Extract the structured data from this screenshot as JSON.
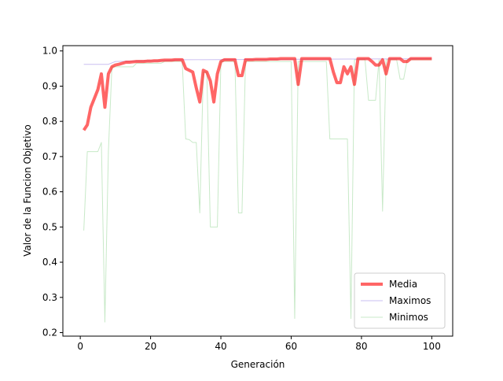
{
  "chart_data": {
    "type": "line",
    "title": "",
    "xlabel": "Generación",
    "ylabel": "Valor de la Funcion Objetivo",
    "xlim": [
      -4.95,
      105.95
    ],
    "ylim": [
      0.19,
      1.015
    ],
    "xticks": [
      0,
      20,
      40,
      60,
      80,
      100
    ],
    "yticks": [
      0.2,
      0.3,
      0.4,
      0.5,
      0.6,
      0.7,
      0.8,
      0.9,
      1.0
    ],
    "xtick_labels": [
      "0",
      "20",
      "40",
      "60",
      "80",
      "100"
    ],
    "ytick_labels": [
      "0.2",
      "0.3",
      "0.4",
      "0.5",
      "0.6",
      "0.7",
      "0.8",
      "0.9",
      "1.0"
    ],
    "grid": false,
    "legend_position": "lower-right",
    "series": [
      {
        "name": "Media",
        "color": "#ff0000",
        "opacity": 0.6,
        "x": [
          1,
          2,
          3,
          4,
          5,
          6,
          7,
          8,
          9,
          10,
          11,
          12,
          13,
          14,
          15,
          16,
          17,
          18,
          19,
          20,
          21,
          22,
          23,
          24,
          25,
          26,
          27,
          28,
          29,
          30,
          31,
          32,
          33,
          34,
          35,
          36,
          37,
          38,
          39,
          40,
          41,
          42,
          43,
          44,
          45,
          46,
          47,
          48,
          49,
          50,
          51,
          52,
          53,
          54,
          55,
          56,
          57,
          58,
          59,
          60,
          61,
          62,
          63,
          64,
          65,
          66,
          67,
          68,
          69,
          70,
          71,
          72,
          73,
          74,
          75,
          76,
          77,
          78,
          79,
          80,
          81,
          82,
          83,
          84,
          85,
          86,
          87,
          88,
          89,
          90,
          91,
          92,
          93,
          94,
          95,
          96,
          97,
          98,
          99,
          100
        ],
        "values": [
          0.775,
          0.79,
          0.84,
          0.865,
          0.89,
          0.935,
          0.84,
          0.935,
          0.955,
          0.96,
          0.962,
          0.965,
          0.968,
          0.968,
          0.969,
          0.97,
          0.97,
          0.97,
          0.971,
          0.971,
          0.972,
          0.972,
          0.973,
          0.974,
          0.974,
          0.974,
          0.975,
          0.975,
          0.975,
          0.95,
          0.945,
          0.94,
          0.895,
          0.855,
          0.945,
          0.94,
          0.915,
          0.855,
          0.935,
          0.97,
          0.975,
          0.975,
          0.975,
          0.975,
          0.93,
          0.93,
          0.975,
          0.975,
          0.975,
          0.976,
          0.976,
          0.976,
          0.976,
          0.977,
          0.977,
          0.977,
          0.978,
          0.978,
          0.978,
          0.978,
          0.978,
          0.905,
          0.978,
          0.978,
          0.978,
          0.978,
          0.978,
          0.978,
          0.978,
          0.978,
          0.978,
          0.94,
          0.91,
          0.91,
          0.955,
          0.935,
          0.955,
          0.905,
          0.978,
          0.978,
          0.978,
          0.978,
          0.97,
          0.96,
          0.96,
          0.975,
          0.935,
          0.978,
          0.978,
          0.978,
          0.978,
          0.97,
          0.97,
          0.978,
          0.978,
          0.978,
          0.978,
          0.978,
          0.978,
          0.978
        ],
        "linewidth": 4
      },
      {
        "name": "Maximos",
        "color": "#8a70e0",
        "opacity": 0.45,
        "x": [
          1,
          8,
          10,
          20,
          21,
          29,
          30,
          100
        ],
        "values": [
          0.962,
          0.962,
          0.97,
          0.972,
          0.972,
          0.975,
          0.975,
          0.978
        ],
        "linewidth": 1
      },
      {
        "name": "Minimos",
        "color": "#60c060",
        "opacity": 0.35,
        "x": [
          1,
          2,
          3,
          4,
          5,
          6,
          7,
          8,
          9,
          10,
          11,
          12,
          13,
          14,
          15,
          16,
          17,
          18,
          19,
          20,
          21,
          22,
          23,
          24,
          25,
          26,
          27,
          28,
          29,
          30,
          31,
          32,
          33,
          34,
          35,
          36,
          37,
          38,
          39,
          40,
          41,
          42,
          43,
          44,
          45,
          46,
          47,
          48,
          49,
          50,
          51,
          52,
          53,
          54,
          55,
          56,
          57,
          58,
          59,
          60,
          61,
          62,
          63,
          64,
          65,
          66,
          67,
          68,
          69,
          70,
          71,
          72,
          73,
          74,
          75,
          76,
          77,
          78,
          79,
          80,
          81,
          82,
          83,
          84,
          85,
          86,
          87,
          88,
          89,
          90,
          91,
          92,
          93,
          94,
          95,
          96,
          97,
          98,
          99,
          100
        ],
        "values": [
          0.49,
          0.714,
          0.714,
          0.714,
          0.714,
          0.74,
          0.23,
          0.714,
          0.955,
          0.955,
          0.955,
          0.955,
          0.955,
          0.955,
          0.955,
          0.965,
          0.965,
          0.965,
          0.965,
          0.965,
          0.965,
          0.965,
          0.965,
          0.97,
          0.97,
          0.97,
          0.97,
          0.97,
          0.97,
          0.75,
          0.748,
          0.74,
          0.74,
          0.54,
          0.94,
          0.94,
          0.5,
          0.5,
          0.5,
          0.97,
          0.97,
          0.97,
          0.97,
          0.97,
          0.54,
          0.54,
          0.97,
          0.97,
          0.97,
          0.97,
          0.97,
          0.97,
          0.97,
          0.97,
          0.97,
          0.97,
          0.97,
          0.97,
          0.97,
          0.97,
          0.24,
          0.97,
          0.97,
          0.97,
          0.97,
          0.97,
          0.97,
          0.97,
          0.97,
          0.97,
          0.75,
          0.75,
          0.75,
          0.75,
          0.75,
          0.75,
          0.24,
          0.975,
          0.975,
          0.975,
          0.975,
          0.86,
          0.86,
          0.86,
          0.975,
          0.545,
          0.975,
          0.975,
          0.975,
          0.975,
          0.92,
          0.92,
          0.975,
          0.975,
          0.975,
          0.975,
          0.975,
          0.975,
          0.975,
          0.975
        ],
        "linewidth": 1
      }
    ]
  }
}
